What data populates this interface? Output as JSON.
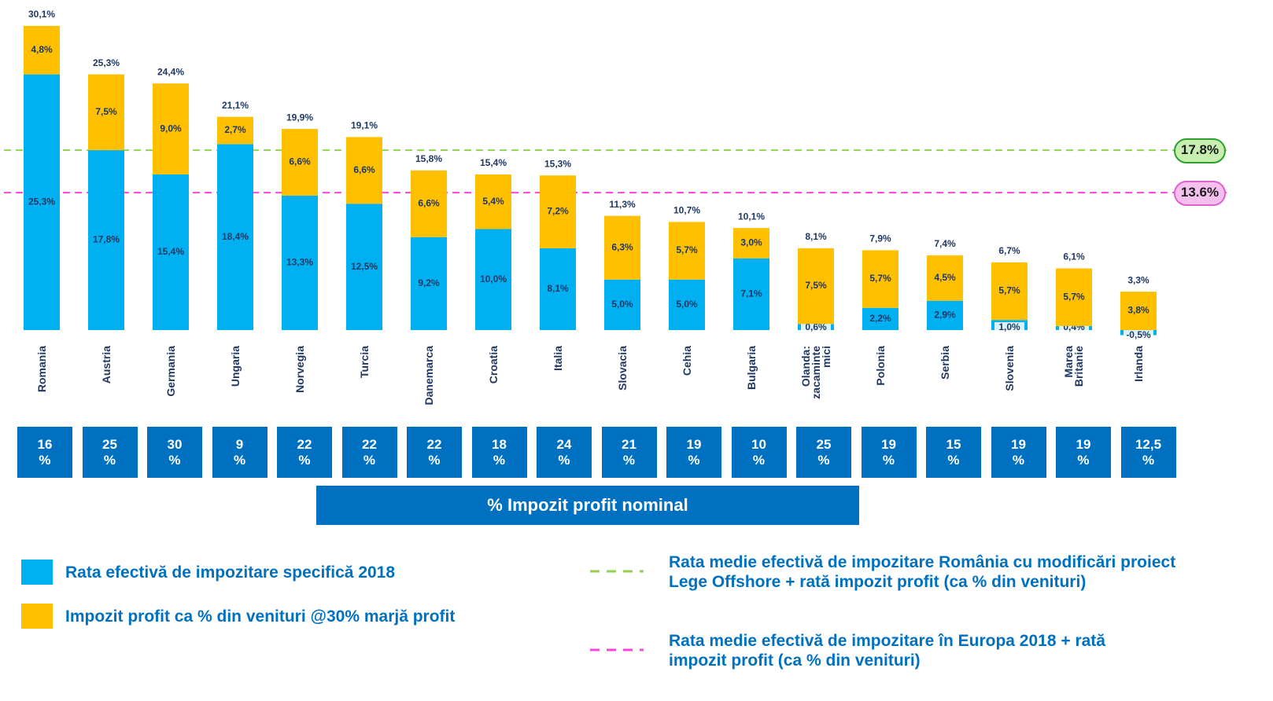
{
  "chart_data": {
    "type": "stacked_bar",
    "categories": [
      "Romania",
      "Austria",
      "Germania",
      "Ungaria",
      "Norvegia",
      "Turcia",
      "Danemarca",
      "Croatia",
      "Italia",
      "Slovacia",
      "Cehia",
      "Bulgaria",
      "Olanda:\nzacaminte\nmici",
      "Polonia",
      "Serbia",
      "Slovenia",
      "Marea\nBritanie",
      "Irlanda"
    ],
    "series": [
      {
        "name": "Rata efectivă de impozitare specifică 2018",
        "color": "#00b0f0",
        "values": [
          25.3,
          17.8,
          15.4,
          18.4,
          13.3,
          12.5,
          9.2,
          10.0,
          8.1,
          5.0,
          5.0,
          7.1,
          0.6,
          2.2,
          2.9,
          1.0,
          0.4,
          -0.5
        ],
        "value_labels": [
          "25,3%",
          "17,8%",
          "15,4%",
          "18,4%",
          "13,3%",
          "12,5%",
          "9,2%",
          "10,0%",
          "8,1%",
          "5,0%",
          "5,0%",
          "7,1%",
          "0,6%",
          "2,2%",
          "2,9%",
          "1,0%",
          "0,4%",
          "-0,5%"
        ]
      },
      {
        "name": "Impozit profit ca % din venituri @30% marjă profit",
        "color": "#ffc000",
        "values": [
          4.8,
          7.5,
          9.0,
          2.7,
          6.6,
          6.6,
          6.6,
          5.4,
          7.2,
          6.3,
          5.7,
          3.0,
          7.5,
          5.7,
          4.5,
          5.7,
          5.7,
          3.8
        ],
        "value_labels": [
          "4,8%",
          "7,5%",
          "9,0%",
          "2,7%",
          "6,6%",
          "6,6%",
          "6,6%",
          "5,4%",
          "7,2%",
          "6,3%",
          "5,7%",
          "3,0%",
          "7,5%",
          "5,7%",
          "4,5%",
          "5,7%",
          "5,7%",
          "3,8%"
        ]
      }
    ],
    "totals": {
      "values": [
        30.1,
        25.3,
        24.4,
        21.1,
        19.9,
        19.1,
        15.8,
        15.4,
        15.3,
        11.3,
        10.7,
        10.1,
        8.1,
        7.9,
        7.4,
        6.7,
        6.1,
        3.3
      ],
      "value_labels": [
        "30,1%",
        "25,3%",
        "24,4%",
        "21,1%",
        "19,9%",
        "19,1%",
        "15,8%",
        "15,4%",
        "15,3%",
        "11,3%",
        "10,7%",
        "10,1%",
        "8,1%",
        "7,9%",
        "7,4%",
        "6,7%",
        "6,1%",
        "3,3%"
      ]
    },
    "reference_lines": [
      {
        "name": "Rata medie efectivă de impozitare România cu modificări proiect Lege Offshore + rată impozit profit (ca % din venituri)",
        "value": 17.8,
        "label": "17.8%",
        "color": "#92d050",
        "fill": "#c6efb0",
        "border": "#2e9e2e"
      },
      {
        "name": "Rata medie efectivă de impozitare în Europa 2018 + rată impozit profit (ca % din venituri)",
        "value": 13.6,
        "label": "13.6%",
        "color": "#ff44dd",
        "fill": "#f6c0ee",
        "border": "#e060d0"
      }
    ],
    "nominal": {
      "title": "% Impozit profit  nominal",
      "values": [
        16,
        25,
        30,
        9,
        22,
        22,
        22,
        18,
        24,
        21,
        19,
        10,
        25,
        19,
        15,
        19,
        19,
        12.5
      ],
      "value_labels": [
        "16\n%",
        "25\n%",
        "30\n%",
        "9\n%",
        "22\n%",
        "22\n%",
        "22\n%",
        "18\n%",
        "24\n%",
        "21\n%",
        "19\n%",
        "10\n%",
        "25\n%",
        "19\n%",
        "15\n%",
        "19\n%",
        "19\n%",
        "12,5\n%"
      ]
    }
  }
}
